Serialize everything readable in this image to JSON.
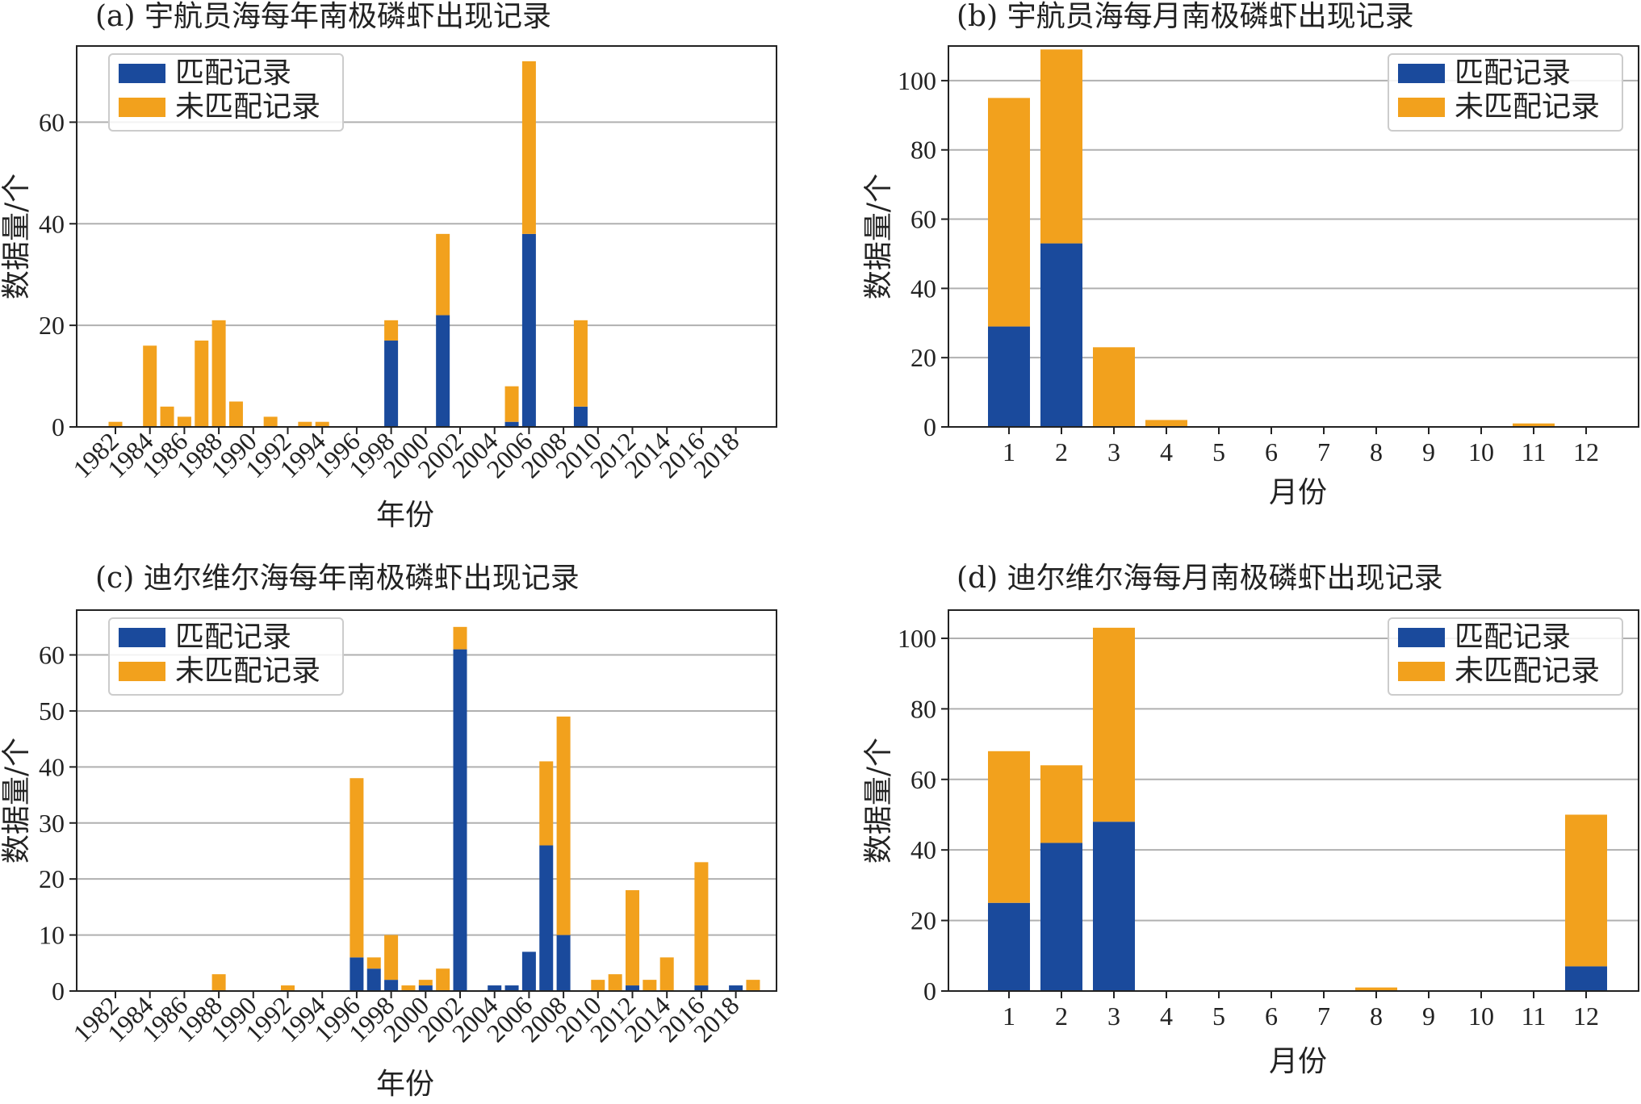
{
  "colors": {
    "matched": "#1a4a9c",
    "unmatched": "#f2a11d",
    "grid": "#b0b0b0",
    "axis": "#222222"
  },
  "chart_data": [
    {
      "id": "a",
      "type": "bar",
      "stacked": true,
      "title": "(a) 宇航员海每年南极磷虾出现记录",
      "xlabel": "年份",
      "ylabel": "数据量/个",
      "ylim": [
        0,
        75
      ],
      "yticks": [
        0,
        20,
        40,
        60
      ],
      "grid": "horizontal",
      "legend_position": "top-left",
      "categories": [
        "1982",
        "1983",
        "1984",
        "1985",
        "1986",
        "1987",
        "1988",
        "1989",
        "1990",
        "1991",
        "1992",
        "1993",
        "1994",
        "1995",
        "1996",
        "1997",
        "1998",
        "1999",
        "2000",
        "2001",
        "2002",
        "2003",
        "2004",
        "2005",
        "2006",
        "2007",
        "2008",
        "2009",
        "2010",
        "2011",
        "2012",
        "2013",
        "2014",
        "2015",
        "2016",
        "2017",
        "2018"
      ],
      "tick_labels": [
        "1982",
        "1984",
        "1986",
        "1988",
        "1990",
        "1992",
        "1994",
        "1996",
        "1998",
        "2000",
        "2002",
        "2004",
        "2006",
        "2008",
        "2010",
        "2012",
        "2014",
        "2016",
        "2018"
      ],
      "series": [
        {
          "name": "匹配记录",
          "values": [
            0,
            0,
            0,
            0,
            0,
            0,
            0,
            0,
            0,
            0,
            0,
            0,
            0,
            0,
            0,
            0,
            17,
            0,
            0,
            22,
            0,
            0,
            0,
            1,
            38,
            0,
            0,
            4,
            0,
            0,
            0,
            0,
            0,
            0,
            0,
            0,
            0
          ]
        },
        {
          "name": "未匹配记录",
          "values": [
            1,
            0,
            16,
            4,
            2,
            17,
            21,
            5,
            0,
            2,
            0,
            1,
            1,
            0,
            0,
            0,
            4,
            0,
            0,
            16,
            0,
            0,
            0,
            7,
            34,
            0,
            0,
            17,
            0,
            0,
            0,
            0,
            0,
            0,
            0,
            0,
            0
          ]
        }
      ]
    },
    {
      "id": "b",
      "type": "bar",
      "stacked": true,
      "title": "(b) 宇航员海每月南极磷虾出现记录",
      "xlabel": "月份",
      "ylabel": "数据量/个",
      "ylim": [
        0,
        110
      ],
      "yticks": [
        0,
        20,
        40,
        60,
        80,
        100
      ],
      "grid": "horizontal",
      "legend_position": "top-right",
      "categories": [
        "1",
        "2",
        "3",
        "4",
        "5",
        "6",
        "7",
        "8",
        "9",
        "10",
        "11",
        "12"
      ],
      "tick_labels": [
        "1",
        "2",
        "3",
        "4",
        "5",
        "6",
        "7",
        "8",
        "9",
        "10",
        "11",
        "12"
      ],
      "series": [
        {
          "name": "匹配记录",
          "values": [
            29,
            53,
            0,
            0,
            0,
            0,
            0,
            0,
            0,
            0,
            0,
            0
          ]
        },
        {
          "name": "未匹配记录",
          "values": [
            66,
            56,
            23,
            2,
            0,
            0,
            0,
            0,
            0,
            0,
            1,
            0
          ]
        }
      ]
    },
    {
      "id": "c",
      "type": "bar",
      "stacked": true,
      "title": "(c) 迪尔维尔海每年南极磷虾出现记录",
      "xlabel": "年份",
      "ylabel": "数据量/个",
      "ylim": [
        0,
        68
      ],
      "yticks": [
        0,
        10,
        20,
        30,
        40,
        50,
        60
      ],
      "grid": "horizontal",
      "legend_position": "top-left",
      "categories": [
        "1982",
        "1983",
        "1984",
        "1985",
        "1986",
        "1987",
        "1988",
        "1989",
        "1990",
        "1991",
        "1992",
        "1993",
        "1994",
        "1995",
        "1996",
        "1997",
        "1998",
        "1999",
        "2000",
        "2001",
        "2002",
        "2003",
        "2004",
        "2005",
        "2006",
        "2007",
        "2008",
        "2009",
        "2010",
        "2011",
        "2012",
        "2013",
        "2014",
        "2015",
        "2016",
        "2017",
        "2018",
        "2019"
      ],
      "tick_labels": [
        "1982",
        "1984",
        "1986",
        "1988",
        "1990",
        "1992",
        "1994",
        "1996",
        "1998",
        "2000",
        "2002",
        "2004",
        "2006",
        "2008",
        "2010",
        "2012",
        "2014",
        "2016",
        "2018"
      ],
      "series": [
        {
          "name": "匹配记录",
          "values": [
            0,
            0,
            0,
            0,
            0,
            0,
            0,
            0,
            0,
            0,
            0,
            0,
            0,
            0,
            6,
            4,
            2,
            0,
            1,
            0,
            61,
            0,
            1,
            1,
            7,
            26,
            10,
            0,
            0,
            0,
            1,
            0,
            0,
            0,
            1,
            0,
            1,
            0
          ]
        },
        {
          "name": "未匹配记录",
          "values": [
            0,
            0,
            0,
            0,
            0,
            0,
            3,
            0,
            0,
            0,
            1,
            0,
            0,
            0,
            32,
            2,
            8,
            1,
            1,
            4,
            4,
            0,
            0,
            0,
            0,
            15,
            39,
            0,
            2,
            3,
            17,
            2,
            6,
            0,
            22,
            0,
            0,
            2
          ]
        }
      ]
    },
    {
      "id": "d",
      "type": "bar",
      "stacked": true,
      "title": "(d) 迪尔维尔海每月南极磷虾出现记录",
      "xlabel": "月份",
      "ylabel": "数据量/个",
      "ylim": [
        0,
        108
      ],
      "yticks": [
        0,
        20,
        40,
        60,
        80,
        100
      ],
      "grid": "horizontal",
      "legend_position": "top-right",
      "categories": [
        "1",
        "2",
        "3",
        "4",
        "5",
        "6",
        "7",
        "8",
        "9",
        "10",
        "11",
        "12"
      ],
      "tick_labels": [
        "1",
        "2",
        "3",
        "4",
        "5",
        "6",
        "7",
        "8",
        "9",
        "10",
        "11",
        "12"
      ],
      "series": [
        {
          "name": "匹配记录",
          "values": [
            25,
            42,
            48,
            0,
            0,
            0,
            0,
            0,
            0,
            0,
            0,
            7
          ]
        },
        {
          "name": "未匹配记录",
          "values": [
            43,
            22,
            55,
            0,
            0,
            0,
            0,
            1,
            0,
            0,
            0,
            43
          ]
        }
      ]
    }
  ]
}
